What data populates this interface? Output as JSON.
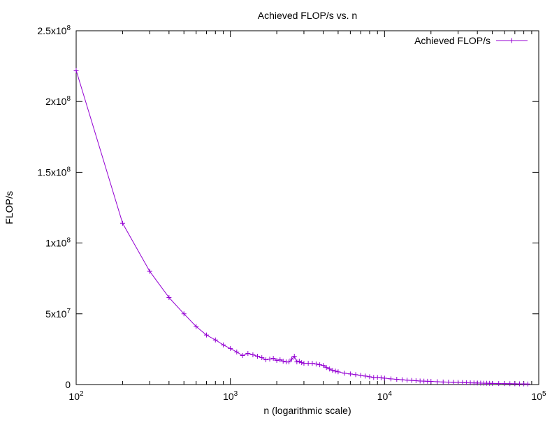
{
  "chart_data": {
    "type": "line",
    "title": "Achieved FLOP/s vs. n",
    "xlabel": "n (logarithmic scale)",
    "ylabel": "FLOP/s",
    "x_scale": "log",
    "xlim": [
      100,
      100000
    ],
    "ylim": [
      0,
      250000000
    ],
    "grid": false,
    "legend_position": "top-right",
    "x_ticks": [
      {
        "value": 100,
        "base": "10",
        "exp": "2"
      },
      {
        "value": 1000,
        "base": "10",
        "exp": "3"
      },
      {
        "value": 10000,
        "base": "10",
        "exp": "4"
      },
      {
        "value": 100000,
        "base": "10",
        "exp": "5"
      }
    ],
    "y_ticks": [
      {
        "value": 0,
        "mantissa": "0",
        "exp": ""
      },
      {
        "value": 50000000,
        "mantissa": "5x10",
        "exp": "7"
      },
      {
        "value": 100000000,
        "mantissa": "1x10",
        "exp": "8"
      },
      {
        "value": 150000000,
        "mantissa": "1.5x10",
        "exp": "8"
      },
      {
        "value": 200000000,
        "mantissa": "2x10",
        "exp": "8"
      },
      {
        "value": 250000000,
        "mantissa": "2.5x10",
        "exp": "8"
      }
    ],
    "series": [
      {
        "name": "Achieved FLOP/s",
        "color": "#9400d3",
        "x": [
          100,
          200,
          300,
          400,
          500,
          600,
          700,
          800,
          900,
          1000,
          1100,
          1200,
          1300,
          1400,
          1500,
          1600,
          1700,
          1800,
          1900,
          2000,
          2100,
          2200,
          2300,
          2400,
          2500,
          2600,
          2700,
          2800,
          2900,
          3000,
          3200,
          3400,
          3600,
          3800,
          4000,
          4200,
          4400,
          4600,
          4800,
          5000,
          5500,
          6000,
          6500,
          7000,
          7500,
          8000,
          8500,
          9000,
          9500,
          10000,
          11000,
          12000,
          13000,
          14000,
          15000,
          16000,
          17000,
          18000,
          19000,
          20000,
          22000,
          24000,
          26000,
          28000,
          30000,
          32000,
          34000,
          36000,
          38000,
          40000,
          42000,
          44000,
          46000,
          48000,
          50000,
          55000,
          60000,
          65000,
          70000,
          75000,
          80000,
          85000
        ],
        "y": [
          222000000,
          114000000,
          80000000,
          61500000,
          50000000,
          41000000,
          35000000,
          31500000,
          28000000,
          25500000,
          23000000,
          20500000,
          22000000,
          21000000,
          20000000,
          19000000,
          17500000,
          18000000,
          18500000,
          17000000,
          17500000,
          16500000,
          16000000,
          16000000,
          18000000,
          20000000,
          16000000,
          16500000,
          15500000,
          15000000,
          15000000,
          15000000,
          14500000,
          14000000,
          13500000,
          12000000,
          11000000,
          10000000,
          9500000,
          9000000,
          8000000,
          7500000,
          7000000,
          6500000,
          6000000,
          5500000,
          5000000,
          5000000,
          4800000,
          4500000,
          4000000,
          3700000,
          3400000,
          3100000,
          2900000,
          2700000,
          2500000,
          2400000,
          2300000,
          2200000,
          2000000,
          1800000,
          1700000,
          1600000,
          1500000,
          1400000,
          1300000,
          1200000,
          1150000,
          1100000,
          1000000,
          950000,
          900000,
          850000,
          800000,
          700000,
          650000,
          600000,
          550000,
          500000,
          450000,
          400000
        ]
      }
    ]
  }
}
